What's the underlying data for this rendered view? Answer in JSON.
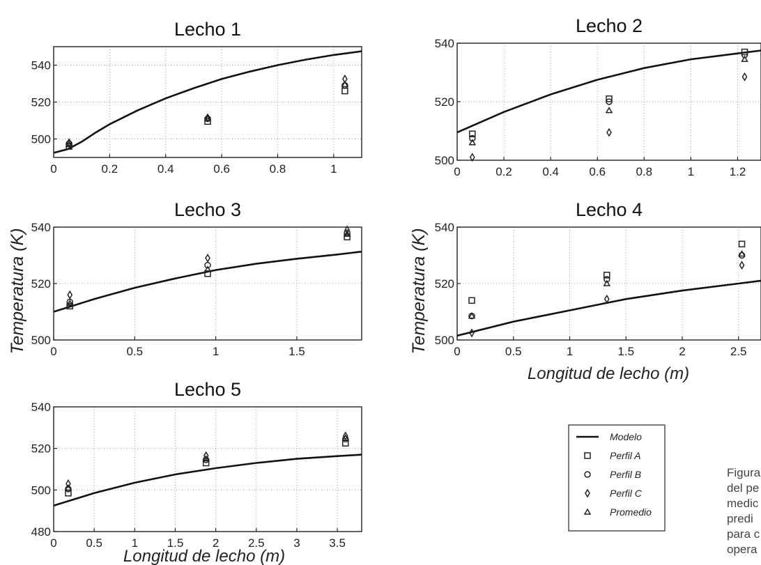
{
  "ylabel": "Temperatura (K)",
  "xlabel": "Longitud de lecho (m)",
  "legend": [
    {
      "label": "Modelo",
      "symbol": "line"
    },
    {
      "label": "Perfil A",
      "symbol": "square"
    },
    {
      "label": "Perfil B",
      "symbol": "circle"
    },
    {
      "label": "Perfil C",
      "symbol": "diamond"
    },
    {
      "label": "Promedio",
      "symbol": "triangle"
    }
  ],
  "caption_lines": [
    "Figura",
    "del pe",
    "medic",
    "predi",
    "para c",
    "opera"
  ],
  "chart_data": [
    {
      "type": "line",
      "title": "Lecho 1",
      "xlim": [
        0,
        1.1
      ],
      "ylim": [
        490,
        550
      ],
      "xticks": [
        0,
        0.2,
        0.4,
        0.6,
        0.8,
        1
      ],
      "xtick_labels": [
        "0",
        "0.2",
        "0.4",
        "0.6",
        "0.8",
        "1"
      ],
      "yticks": [
        500,
        520,
        540
      ],
      "ytick_labels": [
        "500",
        "520",
        "540"
      ],
      "grid": true,
      "model": {
        "x": [
          0,
          0.05,
          0.1,
          0.15,
          0.2,
          0.3,
          0.4,
          0.5,
          0.6,
          0.7,
          0.8,
          0.9,
          1.0,
          1.1
        ],
        "y": [
          492.5,
          494.5,
          498.5,
          503.5,
          508,
          515.5,
          522,
          527.5,
          532.5,
          536.5,
          540,
          543,
          545.5,
          547.5
        ]
      },
      "points": {
        "perfil_a": {
          "x": [
            0.055,
            0.55,
            1.04
          ],
          "y": [
            496,
            509.5,
            526
          ]
        },
        "perfil_b": {
          "x": [
            0.055,
            0.55,
            1.04
          ],
          "y": [
            497.5,
            511,
            529
          ]
        },
        "perfil_c": {
          "x": [
            0.055,
            0.55,
            1.04
          ],
          "y": [
            498,
            511.5,
            532.5
          ]
        },
        "promedio": {
          "x": [
            0.055,
            0.55,
            1.04
          ],
          "y": [
            497,
            511,
            529.5
          ]
        }
      }
    },
    {
      "type": "line",
      "title": "Lecho 2",
      "xlim": [
        0,
        1.3
      ],
      "ylim": [
        500,
        540
      ],
      "xticks": [
        0,
        0.2,
        0.4,
        0.6,
        0.8,
        1,
        1.2
      ],
      "xtick_labels": [
        "0",
        "0.2",
        "0.4",
        "0.6",
        "0.8",
        "1",
        "1.2"
      ],
      "yticks": [
        500,
        520,
        540
      ],
      "ytick_labels": [
        "500",
        "520",
        "540"
      ],
      "grid": true,
      "model": {
        "x": [
          0,
          0.2,
          0.4,
          0.6,
          0.8,
          1.0,
          1.2,
          1.3
        ],
        "y": [
          509.5,
          516.5,
          522.5,
          527.5,
          531.5,
          534.5,
          536.5,
          537.5
        ]
      },
      "points": {
        "perfil_a": {
          "x": [
            0.065,
            0.65,
            1.23
          ],
          "y": [
            509,
            521,
            537
          ]
        },
        "perfil_b": {
          "x": [
            0.065,
            0.65,
            1.23
          ],
          "y": [
            507.5,
            520,
            536
          ]
        },
        "perfil_c": {
          "x": [
            0.065,
            0.65,
            1.23
          ],
          "y": [
            501,
            509.5,
            528.5
          ]
        },
        "promedio": {
          "x": [
            0.065,
            0.65,
            1.23
          ],
          "y": [
            506,
            517,
            534.5
          ]
        }
      }
    },
    {
      "type": "line",
      "title": "Lecho 3",
      "xlim": [
        0,
        1.9
      ],
      "ylim": [
        500,
        540
      ],
      "xticks": [
        0,
        0.5,
        1,
        1.5
      ],
      "xtick_labels": [
        "0",
        "0.5",
        "1",
        "1.5"
      ],
      "yticks": [
        500,
        520,
        540
      ],
      "ytick_labels": [
        "500",
        "520",
        "540"
      ],
      "grid": true,
      "model": {
        "x": [
          0,
          0.25,
          0.5,
          0.75,
          1.0,
          1.25,
          1.5,
          1.75,
          1.9
        ],
        "y": [
          510,
          514.5,
          518.5,
          521.8,
          524.8,
          527,
          528.8,
          530.3,
          531.3
        ]
      },
      "points": {
        "perfil_a": {
          "x": [
            0.1,
            0.95,
            1.81
          ],
          "y": [
            512,
            523.5,
            536.5
          ]
        },
        "perfil_b": {
          "x": [
            0.1,
            0.95,
            1.81
          ],
          "y": [
            513.5,
            526.5,
            538
          ]
        },
        "perfil_c": {
          "x": [
            0.1,
            0.95,
            1.81
          ],
          "y": [
            516,
            529,
            539
          ]
        },
        "promedio": {
          "x": [
            0.1,
            0.95,
            1.81
          ],
          "y": [
            513,
            525,
            537.5
          ]
        }
      }
    },
    {
      "type": "line",
      "title": "Lecho 4",
      "xlim": [
        0,
        2.7
      ],
      "ylim": [
        500,
        540
      ],
      "xticks": [
        0,
        0.5,
        1,
        1.5,
        2,
        2.5
      ],
      "xtick_labels": [
        "0",
        "0.5",
        "1",
        "1.5",
        "2",
        "2.5"
      ],
      "yticks": [
        500,
        520,
        540
      ],
      "ytick_labels": [
        "500",
        "520",
        "540"
      ],
      "grid": true,
      "model": {
        "x": [
          0,
          0.5,
          1.0,
          1.5,
          2.0,
          2.5,
          2.7
        ],
        "y": [
          501.5,
          506.5,
          510.5,
          514.5,
          517.5,
          520,
          521
        ]
      },
      "points": {
        "perfil_a": {
          "x": [
            0.13,
            1.33,
            2.53
          ],
          "y": [
            514,
            523,
            534
          ]
        },
        "perfil_b": {
          "x": [
            0.13,
            1.33,
            2.53
          ],
          "y": [
            508.5,
            521.5,
            530
          ]
        },
        "perfil_c": {
          "x": [
            0.13,
            1.33,
            2.53
          ],
          "y": [
            502.5,
            514.5,
            526.5
          ]
        },
        "promedio": {
          "x": [
            0.13,
            1.33,
            2.53
          ],
          "y": [
            508.5,
            520,
            530.5
          ]
        }
      }
    },
    {
      "type": "line",
      "title": "Lecho 5",
      "xlim": [
        0,
        3.8
      ],
      "ylim": [
        480,
        540
      ],
      "xticks": [
        0,
        0.5,
        1,
        1.5,
        2,
        2.5,
        3,
        3.5
      ],
      "xtick_labels": [
        "0",
        "0.5",
        "1",
        "1.5",
        "2",
        "2.5",
        "3",
        "3.5"
      ],
      "yticks": [
        480,
        500,
        520,
        540
      ],
      "ytick_labels": [
        "480",
        "500",
        "520",
        "540"
      ],
      "grid": true,
      "model": {
        "x": [
          0,
          0.5,
          1.0,
          1.5,
          2.0,
          2.5,
          3.0,
          3.5,
          3.8
        ],
        "y": [
          492.5,
          498.5,
          503.5,
          507.5,
          510.5,
          513,
          515,
          516.3,
          517
        ]
      },
      "points": {
        "perfil_a": {
          "x": [
            0.18,
            1.88,
            3.6
          ],
          "y": [
            498.5,
            513,
            522.5
          ]
        },
        "perfil_b": {
          "x": [
            0.18,
            1.88,
            3.6
          ],
          "y": [
            500.5,
            514.5,
            524.5
          ]
        },
        "perfil_c": {
          "x": [
            0.18,
            1.88,
            3.6
          ],
          "y": [
            503,
            516.5,
            526
          ]
        },
        "promedio": {
          "x": [
            0.18,
            1.88,
            3.6
          ],
          "y": [
            501,
            515,
            525
          ]
        }
      }
    }
  ]
}
